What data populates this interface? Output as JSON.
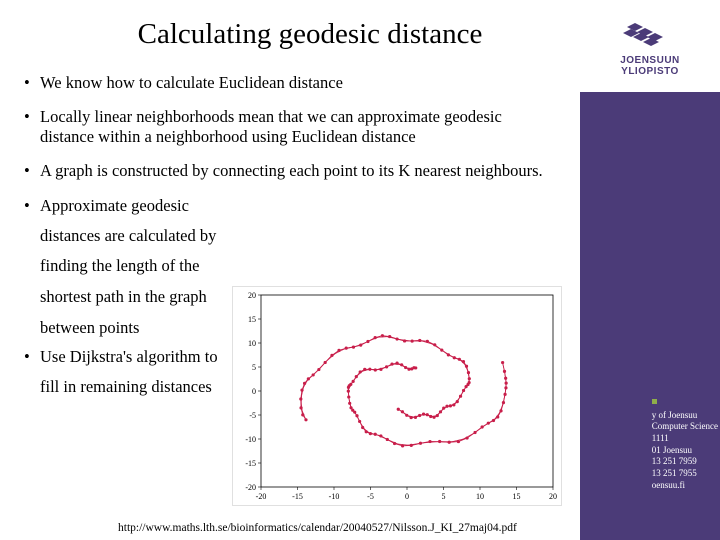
{
  "title": "Calculating geodesic distance",
  "bullets": [
    "We know how to calculate Euclidean distance",
    "Locally linear neighborhoods mean that we can approximate geodesic distance within a neighborhood using Euclidean distance",
    "A graph is constructed by connecting each point to its K nearest neighbours.",
    "Approximate geodesic"
  ],
  "continuation": [
    "distances are calculated by",
    "finding the length of the",
    "shortest path in the graph",
    "between points"
  ],
  "bullet5": "Use Dijkstra's algorithm to",
  "continuation2": "fill in remaining distances",
  "footer_url": "http://www.maths.lth.se/bioinformatics/calendar/20040527/Nilsson.J_KI_27maj04.pdf",
  "logo": {
    "line1": "JOENSUUN",
    "line2": "YLIOPISTO"
  },
  "purple_subtext": "University of Joensuu",
  "contact": {
    "l1": "y of Joensuu",
    "l2": "Computer Science",
    "l3": "1111",
    "l4": "01 Joensuu",
    "l5": " 13 251 7959",
    "l6": " 13 251 7955",
    "l7": "oensuu.fi"
  },
  "chart": {
    "xlim": [
      -20,
      20
    ],
    "ylim": [
      -20,
      20
    ],
    "xticks": [
      -20,
      -15,
      -10,
      -5,
      0,
      5,
      10,
      15,
      20
    ],
    "yticks": [
      -20,
      -15,
      -10,
      -5,
      0,
      5,
      10,
      15,
      20
    ],
    "tick_fontsize": 8,
    "line_color": "#c81e4a",
    "point_color": "#c81e4a",
    "border_color": "#000000",
    "background": "#ffffff"
  }
}
